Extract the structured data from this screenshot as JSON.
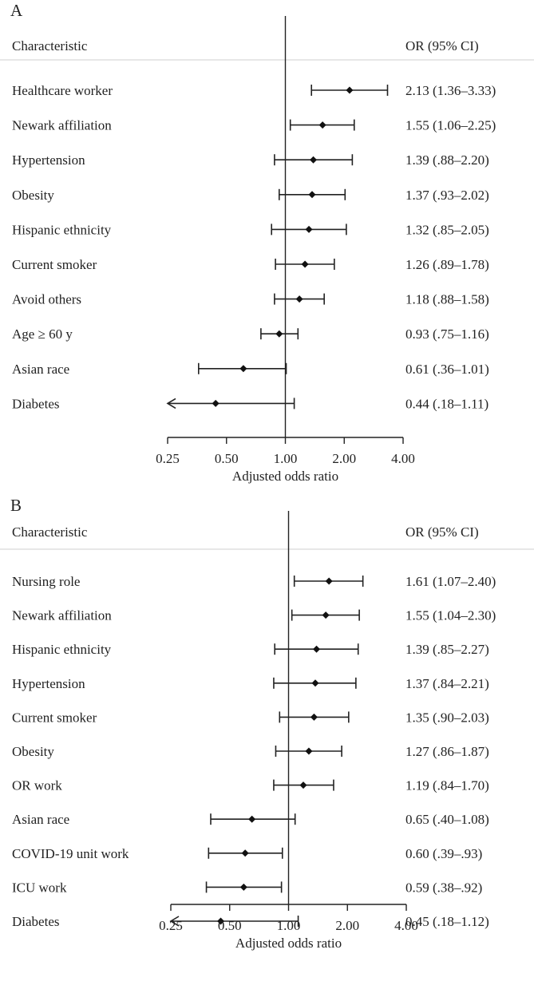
{
  "chart_data": [
    {
      "type": "forest",
      "panel_label": "A",
      "header_left": "Characteristic",
      "header_right": "OR (95% CI)",
      "xlabel": "Adjusted odds ratio",
      "x_scale": "log2",
      "xlim": [
        0.25,
        4.0
      ],
      "x_ticks": [
        0.25,
        0.5,
        1.0,
        2.0,
        4.0
      ],
      "x_tick_labels": [
        "0.25",
        "0.50",
        "1.00",
        "2.00",
        "4.00"
      ],
      "reference_line": 1.0,
      "rows": [
        {
          "label": "Healthcare worker",
          "or": 2.13,
          "lo": 1.36,
          "hi": 3.33,
          "text": "2.13 (1.36–3.33)"
        },
        {
          "label": "Newark affiliation",
          "or": 1.55,
          "lo": 1.06,
          "hi": 2.25,
          "text": "1.55 (1.06–2.25)"
        },
        {
          "label": "Hypertension",
          "or": 1.39,
          "lo": 0.88,
          "hi": 2.2,
          "text": "1.39 (.88–2.20)"
        },
        {
          "label": "Obesity",
          "or": 1.37,
          "lo": 0.93,
          "hi": 2.02,
          "text": "1.37 (.93–2.02)"
        },
        {
          "label": "Hispanic ethnicity",
          "or": 1.32,
          "lo": 0.85,
          "hi": 2.05,
          "text": "1.32 (.85–2.05)"
        },
        {
          "label": "Current smoker",
          "or": 1.26,
          "lo": 0.89,
          "hi": 1.78,
          "text": "1.26 (.89–1.78)"
        },
        {
          "label": "Avoid others",
          "or": 1.18,
          "lo": 0.88,
          "hi": 1.58,
          "text": "1.18 (.88–1.58)"
        },
        {
          "label": "Age ≥ 60 y",
          "or": 0.93,
          "lo": 0.75,
          "hi": 1.16,
          "text": "0.93 (.75–1.16)"
        },
        {
          "label": "Asian race",
          "or": 0.61,
          "lo": 0.36,
          "hi": 1.01,
          "text": "0.61 (.36–1.01)"
        },
        {
          "label": "Diabetes",
          "or": 0.44,
          "lo": 0.18,
          "hi": 1.11,
          "text": "0.44 (.18–1.11)"
        }
      ]
    },
    {
      "type": "forest",
      "panel_label": "B",
      "header_left": "Characteristic",
      "header_right": "OR (95% CI)",
      "xlabel": "Adjusted odds ratio",
      "x_scale": "log2",
      "xlim": [
        0.25,
        4.0
      ],
      "x_ticks": [
        0.25,
        0.5,
        1.0,
        2.0,
        4.0
      ],
      "x_tick_labels": [
        "0.25",
        "0.50",
        "1.00",
        "2.00",
        "4.00"
      ],
      "reference_line": 1.0,
      "rows": [
        {
          "label": "Nursing role",
          "or": 1.61,
          "lo": 1.07,
          "hi": 2.4,
          "text": "1.61 (1.07–2.40)"
        },
        {
          "label": "Newark affiliation",
          "or": 1.55,
          "lo": 1.04,
          "hi": 2.3,
          "text": "1.55 (1.04–2.30)"
        },
        {
          "label": "Hispanic ethnicity",
          "or": 1.39,
          "lo": 0.85,
          "hi": 2.27,
          "text": "1.39 (.85–2.27)"
        },
        {
          "label": "Hypertension",
          "or": 1.37,
          "lo": 0.84,
          "hi": 2.21,
          "text": "1.37 (.84–2.21)"
        },
        {
          "label": "Current smoker",
          "or": 1.35,
          "lo": 0.9,
          "hi": 2.03,
          "text": "1.35 (.90–2.03)"
        },
        {
          "label": "Obesity",
          "or": 1.27,
          "lo": 0.86,
          "hi": 1.87,
          "text": "1.27 (.86–1.87)"
        },
        {
          "label": "OR work",
          "or": 1.19,
          "lo": 0.84,
          "hi": 1.7,
          "text": "1.19 (.84–1.70)"
        },
        {
          "label": "Asian race",
          "or": 0.65,
          "lo": 0.4,
          "hi": 1.08,
          "text": "0.65 (.40–1.08)"
        },
        {
          "label": "COVID-19 unit work",
          "or": 0.6,
          "lo": 0.39,
          "hi": 0.93,
          "text": "0.60 (.39–.93)"
        },
        {
          "label": "ICU work",
          "or": 0.59,
          "lo": 0.38,
          "hi": 0.92,
          "text": "0.59 (.38–.92)"
        },
        {
          "label": "Diabetes",
          "or": 0.45,
          "lo": 0.18,
          "hi": 1.12,
          "text": "0.45 (.18–1.12)"
        }
      ]
    }
  ]
}
